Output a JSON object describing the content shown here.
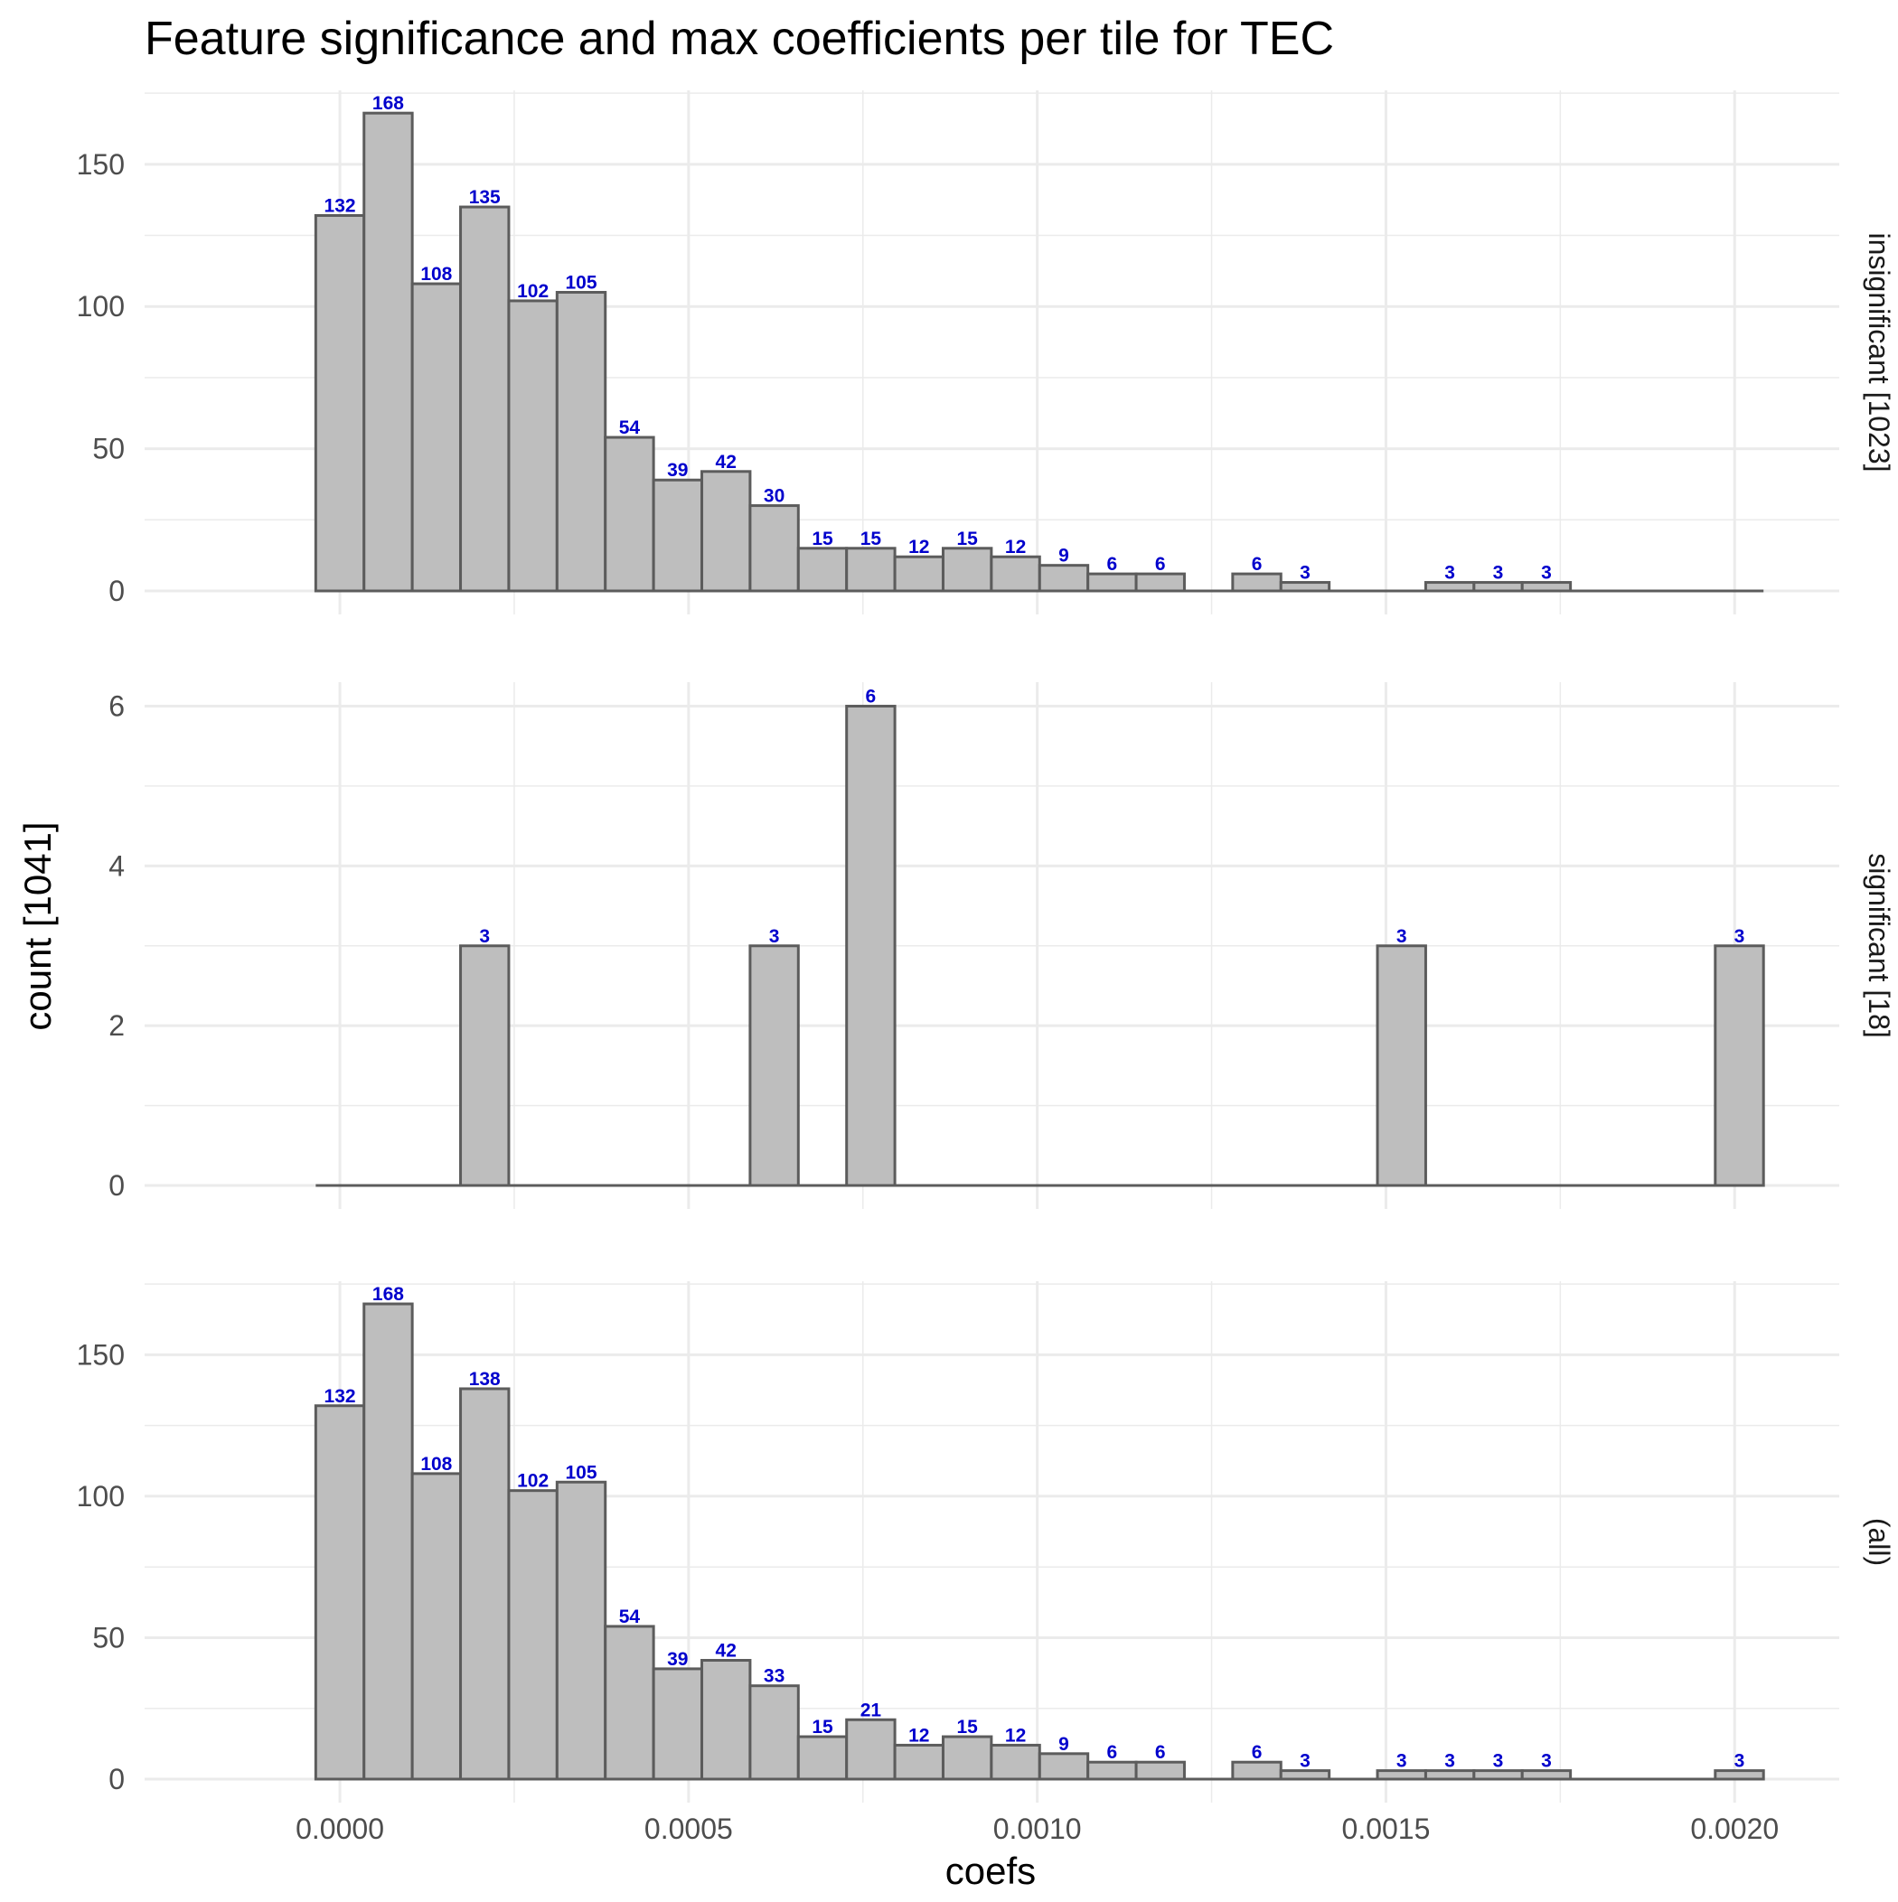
{
  "chart_data": {
    "type": "bar",
    "title": "Feature significance and max coefficients per tile for TEC",
    "xlabel": "coefs",
    "ylabel": "count [1041]",
    "xlim": [
      -0.00028,
      0.00215
    ],
    "x_ticks": [
      {
        "value": 0.0,
        "label": "0.0000"
      },
      {
        "value": 0.0005,
        "label": "0.0005"
      },
      {
        "value": 0.001,
        "label": "0.0010"
      },
      {
        "value": 0.0015,
        "label": "0.0015"
      },
      {
        "value": 0.002,
        "label": "0.0020"
      }
    ],
    "bin_width": 6.92e-05,
    "bin_start": -3.46e-05,
    "bin_count": 30,
    "grid": true,
    "colors": {
      "bar_fill": "#bebebe",
      "bar_stroke": "#5c5c5c",
      "label": "#0000cc",
      "grid": "#ebebeb"
    },
    "panels": [
      {
        "strip_label": "insignificant [1023]",
        "ylim": [
          0,
          176
        ],
        "y_ticks": [
          0,
          50,
          100,
          150
        ],
        "counts": [
          132,
          168,
          108,
          135,
          102,
          105,
          54,
          39,
          42,
          30,
          15,
          15,
          12,
          15,
          12,
          9,
          6,
          6,
          0,
          6,
          3,
          0,
          0,
          3,
          3,
          3,
          0,
          0,
          0,
          0
        ],
        "labels": [
          "132",
          "168",
          "108",
          "135",
          "102",
          "105",
          "54",
          "39",
          "42",
          "30",
          "15",
          "15",
          "12",
          "15",
          "12",
          "9",
          "6",
          "6",
          "",
          "6",
          "3",
          "",
          "",
          "3",
          "3",
          "3",
          "",
          "",
          "",
          ""
        ]
      },
      {
        "strip_label": "significant [18]",
        "ylim": [
          0,
          6.3
        ],
        "y_ticks": [
          0,
          2,
          4,
          6
        ],
        "counts": [
          0,
          0,
          0,
          3,
          0,
          0,
          0,
          0,
          0,
          3,
          0,
          6,
          0,
          0,
          0,
          0,
          0,
          0,
          0,
          0,
          0,
          0,
          3,
          0,
          0,
          0,
          0,
          0,
          0,
          3
        ],
        "labels": [
          "",
          "",
          "",
          "3",
          "",
          "",
          "",
          "",
          "",
          "3",
          "",
          "6",
          "",
          "",
          "",
          "",
          "",
          "",
          "",
          "",
          "",
          "",
          "3",
          "",
          "",
          "",
          "",
          "",
          "",
          "3"
        ]
      },
      {
        "strip_label": "(all)",
        "ylim": [
          0,
          176
        ],
        "y_ticks": [
          0,
          50,
          100,
          150
        ],
        "counts": [
          132,
          168,
          108,
          138,
          102,
          105,
          54,
          39,
          42,
          33,
          15,
          21,
          12,
          15,
          12,
          9,
          6,
          6,
          0,
          6,
          3,
          0,
          3,
          3,
          3,
          3,
          0,
          0,
          0,
          3
        ],
        "labels": [
          "132",
          "168",
          "108",
          "138",
          "102",
          "105",
          "54",
          "39",
          "42",
          "33",
          "15",
          "21",
          "12",
          "15",
          "12",
          "9",
          "6",
          "6",
          "",
          "6",
          "3",
          "",
          "3",
          "3",
          "3",
          "3",
          "",
          "",
          "",
          "3"
        ]
      }
    ]
  }
}
